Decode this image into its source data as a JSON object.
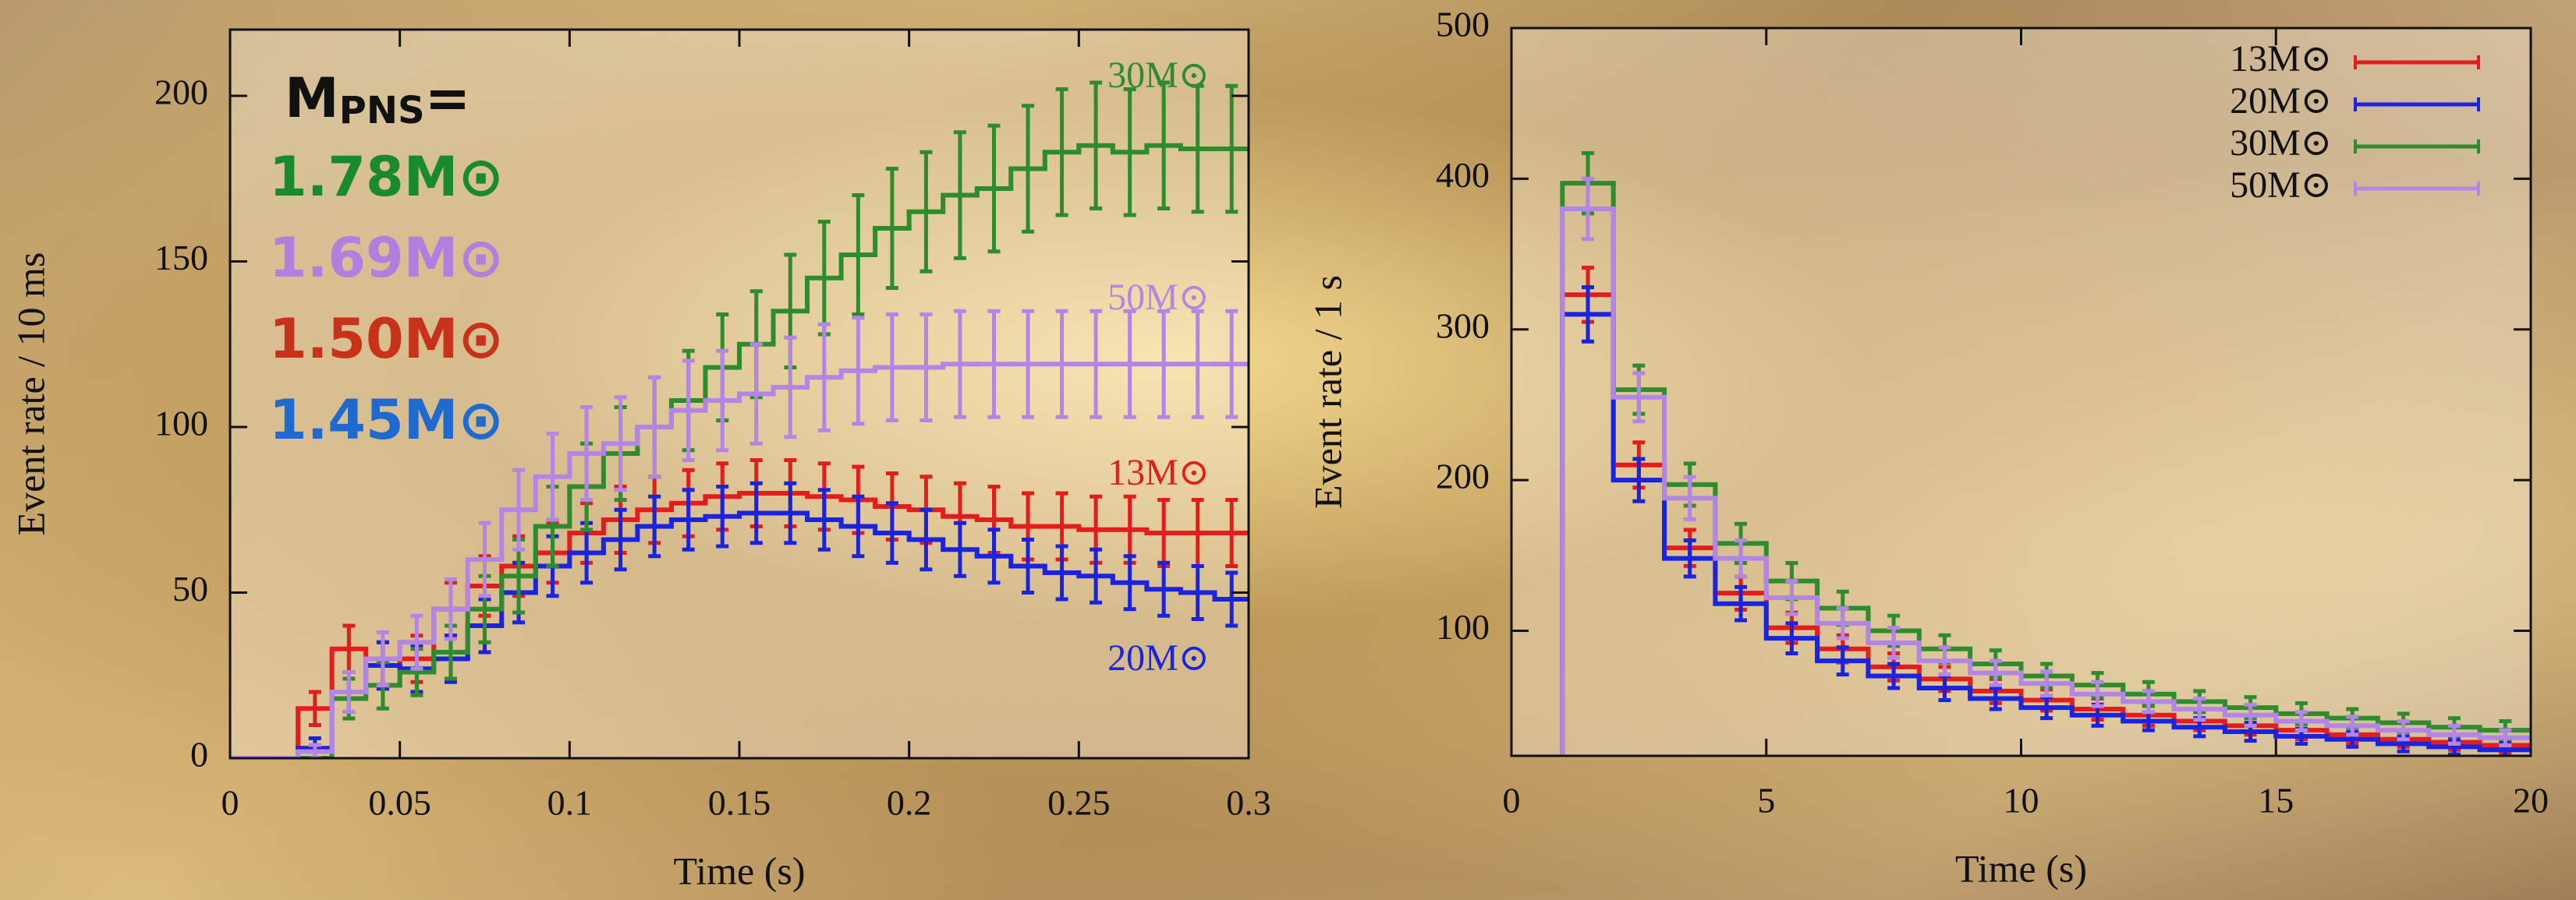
{
  "chart_data": [
    {
      "type": "step-histogram",
      "xlabel": "Time (s)",
      "ylabel": "Event rate / 10 ms",
      "xlim": [
        0,
        0.3
      ],
      "ylim": [
        0,
        220
      ],
      "xticks": [
        0,
        0.05,
        0.1,
        0.15,
        0.2,
        0.25,
        0.3
      ],
      "yticks": [
        0,
        50,
        100,
        150,
        200
      ],
      "bins": [
        0,
        0.01,
        0.02,
        0.03,
        0.04,
        0.05,
        0.06,
        0.07,
        0.08,
        0.09,
        0.1,
        0.11,
        0.12,
        0.13,
        0.14,
        0.15,
        0.16,
        0.17,
        0.18,
        0.19,
        0.2,
        0.21,
        0.22,
        0.23,
        0.24,
        0.25,
        0.26,
        0.27,
        0.28,
        0.29,
        0.3
      ],
      "legend": "labels-at-lines",
      "mass_title": {
        "main": "M",
        "sub": "PNS",
        "tail": "="
      },
      "pns_masses": [
        {
          "text": "1.78M⊙",
          "color": "#1a8a2e"
        },
        {
          "text": "1.69M⊙",
          "color": "#b07fe0"
        },
        {
          "text": "1.50M⊙",
          "color": "#c8321a"
        },
        {
          "text": "1.45M⊙",
          "color": "#1e6ad0"
        }
      ],
      "series": [
        {
          "name": "13M⊙",
          "color": "#e51c1c",
          "values": [
            0,
            0,
            15,
            33,
            28,
            30,
            45,
            52,
            58,
            62,
            68,
            72,
            75,
            77,
            79,
            80,
            80,
            79,
            78,
            76,
            75,
            73,
            72,
            70,
            70,
            69,
            69,
            68,
            68,
            68
          ],
          "errors": [
            0,
            0,
            5,
            7,
            7,
            7,
            8,
            9,
            9,
            9,
            9,
            10,
            10,
            10,
            10,
            10,
            10,
            10,
            10,
            10,
            10,
            10,
            10,
            10,
            10,
            10,
            10,
            10,
            10,
            10
          ]
        },
        {
          "name": "20M⊙",
          "color": "#1a23e0",
          "values": [
            0,
            0,
            3,
            20,
            28,
            27,
            30,
            40,
            50,
            58,
            62,
            66,
            70,
            72,
            73,
            74,
            74,
            72,
            70,
            68,
            66,
            63,
            61,
            58,
            56,
            55,
            53,
            51,
            50,
            48
          ],
          "errors": [
            0,
            0,
            3,
            6,
            7,
            7,
            7,
            8,
            9,
            9,
            9,
            9,
            9,
            9,
            9,
            9,
            9,
            9,
            9,
            9,
            9,
            8,
            8,
            8,
            8,
            8,
            8,
            8,
            8,
            8
          ]
        },
        {
          "name": "30M⊙",
          "color": "#2e8b2e",
          "values": [
            0,
            0,
            0,
            18,
            22,
            26,
            32,
            45,
            55,
            70,
            82,
            92,
            100,
            108,
            118,
            125,
            135,
            145,
            152,
            160,
            165,
            170,
            172,
            178,
            183,
            185,
            183,
            185,
            184,
            184
          ],
          "errors": [
            0,
            0,
            0,
            6,
            7,
            7,
            8,
            10,
            11,
            12,
            13,
            14,
            15,
            15,
            16,
            16,
            17,
            17,
            18,
            18,
            18,
            19,
            19,
            19,
            19,
            19,
            19,
            19,
            19,
            19
          ]
        },
        {
          "name": "50M⊙",
          "color": "#b285e6",
          "values": [
            0,
            0,
            2,
            20,
            30,
            35,
            45,
            60,
            75,
            85,
            92,
            95,
            100,
            105,
            108,
            110,
            112,
            115,
            117,
            118,
            118,
            119,
            119,
            119,
            119,
            119,
            119,
            119,
            119,
            119
          ],
          "errors": [
            0,
            0,
            2,
            6,
            8,
            8,
            9,
            11,
            12,
            13,
            14,
            14,
            15,
            15,
            15,
            15,
            15,
            16,
            16,
            16,
            16,
            16,
            16,
            16,
            16,
            16,
            16,
            16,
            16,
            16
          ]
        }
      ]
    },
    {
      "type": "step-histogram",
      "xlabel": "Time (s)",
      "ylabel": "Event rate / 1 s",
      "xlim": [
        0,
        20
      ],
      "ylim": [
        17,
        500
      ],
      "xticks": [
        0,
        5,
        10,
        15,
        20
      ],
      "yticks": [
        100,
        200,
        300,
        400,
        500
      ],
      "bins": [
        1,
        2,
        3,
        4,
        5,
        6,
        7,
        8,
        9,
        10,
        11,
        12,
        13,
        14,
        15,
        16,
        17,
        18,
        19,
        20
      ],
      "legend": "upper right",
      "series": [
        {
          "name": "13M⊙",
          "color": "#e51c1c",
          "values": [
            323,
            210,
            155,
            125,
            102,
            88,
            76,
            68,
            60,
            54,
            48,
            44,
            40,
            37,
            34,
            31,
            28,
            26,
            24
          ],
          "errors": [
            18,
            15,
            12,
            11,
            10,
            9,
            9,
            8,
            8,
            7,
            7,
            7,
            6,
            6,
            6,
            6,
            5,
            5,
            5
          ]
        },
        {
          "name": "20M⊙",
          "color": "#1a23e0",
          "values": [
            310,
            200,
            148,
            118,
            95,
            80,
            70,
            62,
            55,
            49,
            44,
            40,
            36,
            33,
            30,
            28,
            25,
            23,
            21
          ],
          "errors": [
            18,
            14,
            12,
            11,
            10,
            9,
            8,
            8,
            7,
            7,
            7,
            6,
            6,
            6,
            5,
            5,
            5,
            5,
            5
          ]
        },
        {
          "name": "30M⊙",
          "color": "#2e8b2e",
          "values": [
            397,
            260,
            197,
            158,
            133,
            115,
            100,
            88,
            78,
            70,
            64,
            58,
            53,
            49,
            45,
            42,
            39,
            36,
            34
          ],
          "errors": [
            20,
            16,
            14,
            13,
            12,
            11,
            10,
            9,
            9,
            8,
            8,
            8,
            7,
            7,
            7,
            6,
            6,
            6,
            6
          ]
        },
        {
          "name": "50M⊙",
          "color": "#b285e6",
          "values": [
            380,
            255,
            188,
            148,
            122,
            105,
            92,
            80,
            72,
            65,
            58,
            53,
            48,
            44,
            40,
            37,
            34,
            31,
            29
          ],
          "errors": [
            20,
            16,
            14,
            12,
            11,
            10,
            10,
            9,
            8,
            8,
            8,
            7,
            7,
            7,
            6,
            6,
            6,
            6,
            5
          ]
        }
      ]
    }
  ]
}
